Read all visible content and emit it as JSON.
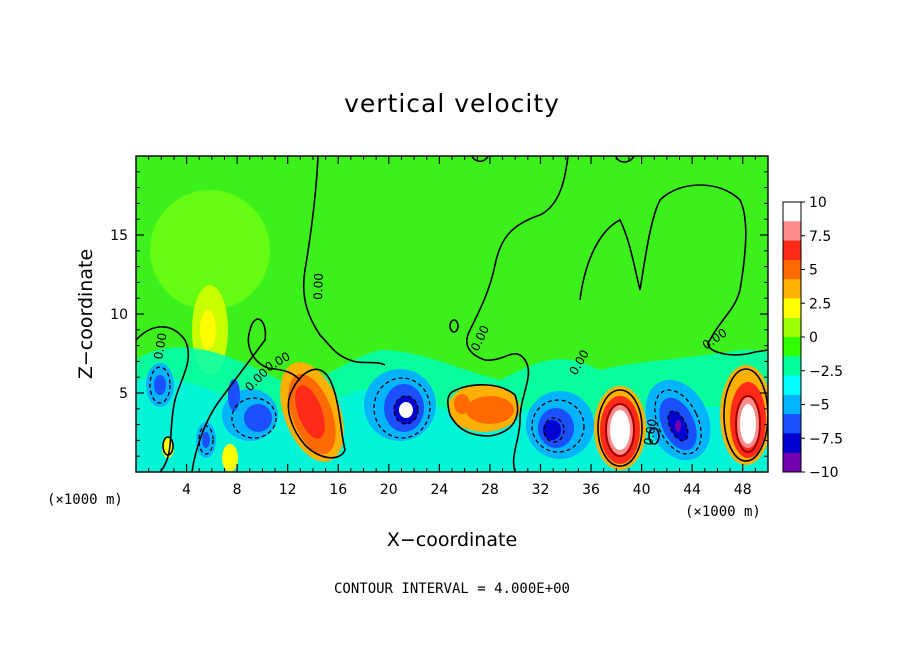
{
  "chart_data": {
    "type": "heatmap",
    "title": "vertical velocity",
    "xlabel": "X−coordinate",
    "ylabel": "Z−coordinate",
    "x_unit_left": "(×1000 m)",
    "x_unit_right": "(×1000 m)",
    "xlim": [
      0,
      50
    ],
    "ylim": [
      0,
      20
    ],
    "xticks": [
      4,
      8,
      12,
      16,
      20,
      24,
      28,
      32,
      36,
      40,
      44,
      48
    ],
    "yticks": [
      5,
      10,
      15
    ],
    "contour_interval_text": "CONTOUR INTERVAL = 4.000E+00",
    "contour_labels": [
      "0.00",
      "0.00",
      "0.00",
      "0.00",
      "0.00",
      "0.00",
      "0.00",
      "0.00"
    ],
    "colorbar": {
      "ticks": [
        10,
        7.5,
        5,
        2.5,
        0,
        -2.5,
        -5,
        -7.5,
        -10
      ],
      "tick_labels": [
        "10",
        "7.5",
        "5",
        "2.5",
        "0",
        "−2.5",
        "−5",
        "−7.5",
        "−10"
      ],
      "colors": [
        "#ffffff",
        "#ff8a8a",
        "#ff2a1a",
        "#ff6a00",
        "#ffb000",
        "#ffff00",
        "#a0ff00",
        "#30ff00",
        "#00ff9a",
        "#00ffff",
        "#00b4ff",
        "#1a50ff",
        "#0000d0",
        "#7000b0"
      ]
    },
    "features": [
      {
        "kind": "updraft",
        "x": 13.5,
        "z": 3.8,
        "peak": 7.5
      },
      {
        "kind": "updraft",
        "x": 27.5,
        "z": 4.2,
        "peak": 5
      },
      {
        "kind": "updraft",
        "x": 38.3,
        "z": 2.8,
        "peak": 10
      },
      {
        "kind": "updraft",
        "x": 47.8,
        "z": 3.5,
        "peak": 10
      },
      {
        "kind": "updraft",
        "x": 5.7,
        "z": 9.5,
        "peak": 3
      },
      {
        "kind": "downdraft",
        "x": 21.5,
        "z": 4.5,
        "peak": -10
      },
      {
        "kind": "downdraft",
        "x": 33.2,
        "z": 3.0,
        "peak": -7.5
      },
      {
        "kind": "downdraft",
        "x": 42.6,
        "z": 3.0,
        "peak": -9
      },
      {
        "kind": "downdraft",
        "x": 9.5,
        "z": 4.0,
        "peak": -5
      },
      {
        "kind": "downdraft",
        "x": 2.0,
        "z": 5.5,
        "peak": -5
      },
      {
        "kind": "downdraft",
        "x": 5.3,
        "z": 2.0,
        "peak": -5
      }
    ]
  }
}
